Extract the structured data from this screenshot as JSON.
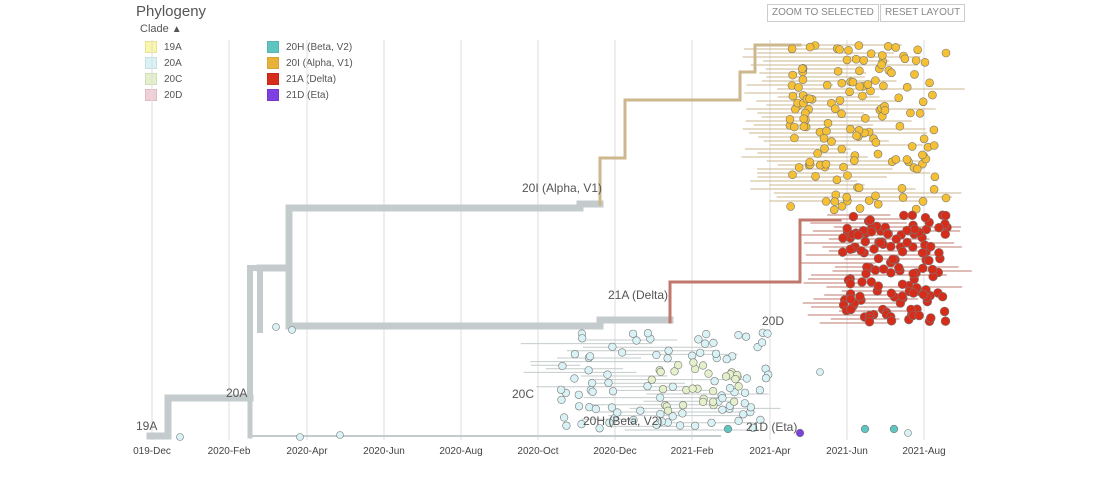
{
  "panel": {
    "title": "Phylogeny",
    "clade_toggle": "Clade",
    "zoom_button": "ZOOM TO SELECTED",
    "reset_button": "RESET LAYOUT"
  },
  "legend": [
    {
      "label": "19A",
      "color": "#fbf7a9"
    },
    {
      "label": "20A",
      "color": "#d9f2f5"
    },
    {
      "label": "20C",
      "color": "#e3f0c9"
    },
    {
      "label": "20D",
      "color": "#f0cfd7"
    },
    {
      "label": "20H (Beta, V2)",
      "color": "#5ec5c1"
    },
    {
      "label": "20I (Alpha, V1)",
      "color": "#e8b23a"
    },
    {
      "label": "21A (Delta)",
      "color": "#d62c1a"
    },
    {
      "label": "21D (Eta)",
      "color": "#7e3fe0"
    }
  ],
  "branch_labels": {
    "b19A": "19A",
    "b20A": "20A",
    "b20C": "20C",
    "b20H": "20H (Beta, V2)",
    "b20I": "20I (Alpha, V1)",
    "b21A": "21A (Delta)",
    "b20D": "20D",
    "b21D": "21D (Eta)"
  },
  "axis_ticks": [
    "019-Dec",
    "2020-Feb",
    "2020-Apr",
    "2020-Jun",
    "2020-Aug",
    "2020-Oct",
    "2020-Dec",
    "2021-Feb",
    "2021-Apr",
    "2021-Jun",
    "2021-Aug"
  ],
  "colors": {
    "trunk": "#c3cbcc",
    "alpha_branch": "#cdb78d",
    "delta_branch": "#c0786c",
    "alpha_tip": "#f5c033",
    "delta_tip": "#d62c1a",
    "a20_tip": "#d9f2f5",
    "c20_tip": "#e3f0c9",
    "beta_tip": "#5ec5c1",
    "eta_tip": "#7e3fe0",
    "gridline": "#dddddd"
  }
}
